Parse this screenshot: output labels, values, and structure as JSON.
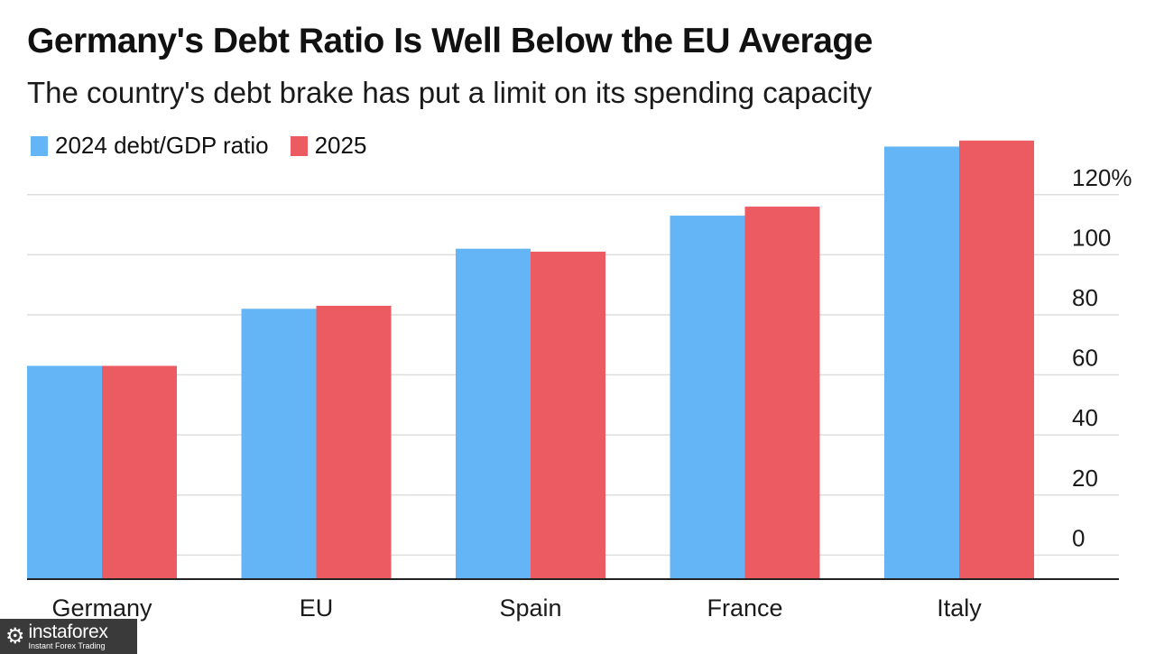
{
  "colors": {
    "series_2024": "#64b5f6",
    "series_2025": "#ec5a62",
    "grid": "#dedede",
    "axis": "#222222"
  },
  "chart_data": {
    "type": "bar",
    "title": "Germany's Debt Ratio Is Well Below the EU Average",
    "subtitle": "The country's debt brake has put a limit on its spending capacity",
    "categories": [
      "Germany",
      "EU",
      "Spain",
      "France",
      "Italy"
    ],
    "series": [
      {
        "name": "2024 debt/GDP ratio",
        "values": [
          63,
          82,
          102,
          113,
          136
        ]
      },
      {
        "name": "2025",
        "values": [
          63,
          83,
          101,
          116,
          138
        ]
      }
    ],
    "yticks": [
      0,
      20,
      40,
      60,
      80,
      100,
      120
    ],
    "ytick_labels": [
      "0",
      "20",
      "40",
      "60",
      "80",
      "100",
      "120%"
    ],
    "ylim": [
      -8,
      140
    ],
    "xlabel": "",
    "ylabel": "",
    "legend": "top-left",
    "grid": true
  },
  "watermark": {
    "icon": "⚙",
    "brand": "instaforex",
    "tagline": "Instant Forex Trading"
  }
}
